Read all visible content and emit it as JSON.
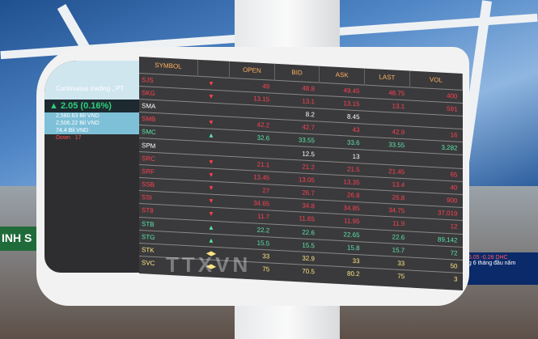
{
  "board": {
    "headers": [
      "SYMBOL",
      "",
      "OPEN",
      "BID",
      "ASK",
      "LAST",
      "VOL"
    ],
    "rows": [
      {
        "symbol": "SJS",
        "dir": "down",
        "arrow": "▼",
        "open": "49",
        "bid": "48.8",
        "ask": "49.45",
        "last": "48.75",
        "vol": "400"
      },
      {
        "symbol": "SKG",
        "dir": "down",
        "arrow": "▼",
        "open": "13.15",
        "bid": "13.1",
        "ask": "13.15",
        "last": "13.1",
        "vol": "591"
      },
      {
        "symbol": "SMA",
        "dir": "neu",
        "arrow": "",
        "open": "",
        "bid": "8.2",
        "ask": "8.45",
        "last": "",
        "vol": ""
      },
      {
        "symbol": "SMB",
        "dir": "down",
        "arrow": "▼",
        "open": "42.2",
        "bid": "42.7",
        "ask": "43",
        "last": "42.9",
        "vol": "16"
      },
      {
        "symbol": "SMC",
        "dir": "up",
        "arrow": "▲",
        "open": "32.6",
        "bid": "33.55",
        "ask": "33.6",
        "last": "33.55",
        "vol": "3,282"
      },
      {
        "symbol": "SPM",
        "dir": "neu",
        "arrow": "",
        "open": "",
        "bid": "12.5",
        "ask": "13",
        "last": "",
        "vol": ""
      },
      {
        "symbol": "SRC",
        "dir": "down",
        "arrow": "▼",
        "open": "21.1",
        "bid": "21.2",
        "ask": "21.5",
        "last": "21.45",
        "vol": "65"
      },
      {
        "symbol": "SRF",
        "dir": "down",
        "arrow": "▼",
        "open": "13.45",
        "bid": "13.05",
        "ask": "13.35",
        "last": "13.4",
        "vol": "40"
      },
      {
        "symbol": "SSB",
        "dir": "down",
        "arrow": "▼",
        "open": "27",
        "bid": "26.7",
        "ask": "26.8",
        "last": "26.8",
        "vol": "900"
      },
      {
        "symbol": "SSI",
        "dir": "down",
        "arrow": "▼",
        "open": "34.65",
        "bid": "34.8",
        "ask": "34.85",
        "last": "34.75",
        "vol": "37,019"
      },
      {
        "symbol": "ST8",
        "dir": "down",
        "arrow": "▼",
        "open": "11.7",
        "bid": "11.65",
        "ask": "11.95",
        "last": "11.9",
        "vol": "12"
      },
      {
        "symbol": "STB",
        "dir": "up",
        "arrow": "▲",
        "open": "22.2",
        "bid": "22.6",
        "ask": "22.65",
        "last": "22.6",
        "vol": "89,142"
      },
      {
        "symbol": "STG",
        "dir": "up",
        "arrow": "▲",
        "open": "15.5",
        "bid": "15.5",
        "ask": "15.8",
        "last": "15.7",
        "vol": "72"
      },
      {
        "symbol": "STK",
        "dir": "ref",
        "arrow": "◀▶",
        "open": "33",
        "bid": "32.9",
        "ask": "33",
        "last": "33",
        "vol": "50"
      },
      {
        "symbol": "SVC",
        "dir": "ref",
        "arrow": "◀▶",
        "open": "75",
        "bid": "70.5",
        "ask": "80.2",
        "last": "75",
        "vol": "3"
      }
    ]
  },
  "left_panel": {
    "status": "Continuous trading , PT",
    "change": "▲ 2.05 (0.16%)",
    "lines": [
      "2,580.63 Bil VND",
      "2,506.22 Bil VND",
      "74.4 Bil VND"
    ],
    "down_label": "Down",
    "down_count": "17"
  },
  "ticker": {
    "line1": "16.05 -0.28 DHC",
    "line2": "ng 6 tháng đầu năm"
  },
  "sign": "INH S",
  "watermark": "TTXVN"
}
